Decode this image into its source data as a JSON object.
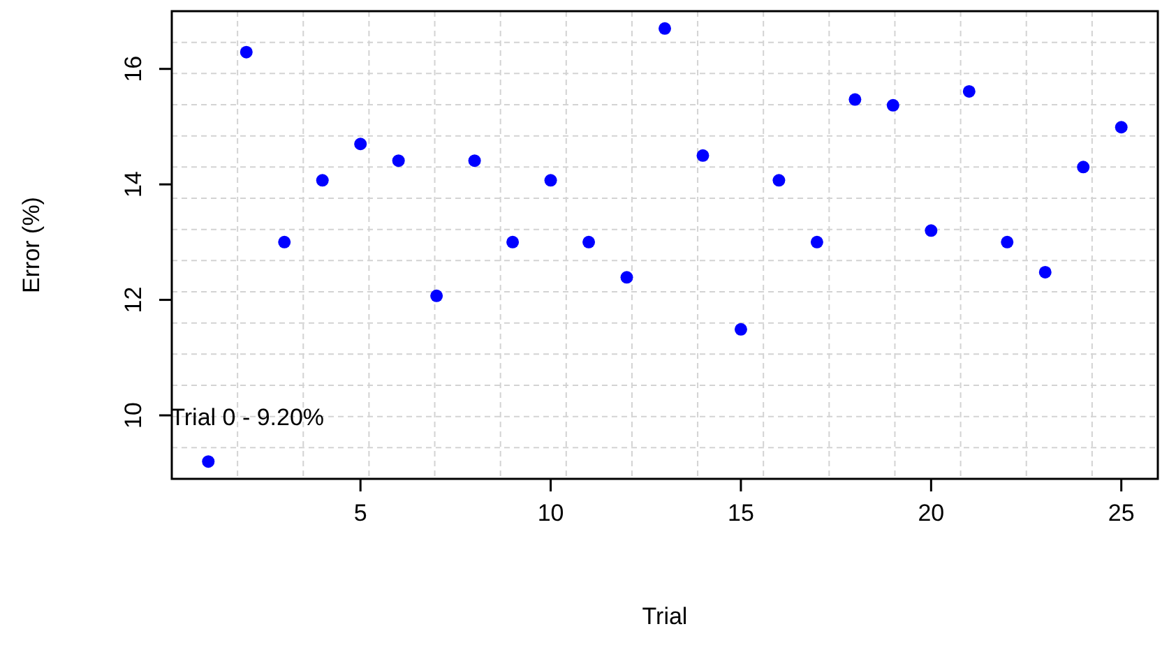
{
  "chart_data": {
    "type": "scatter",
    "xlabel": "Trial",
    "ylabel": "Error (%)",
    "x": [
      1,
      2,
      3,
      4,
      5,
      6,
      7,
      8,
      9,
      10,
      11,
      12,
      13,
      14,
      15,
      16,
      17,
      18,
      19,
      20,
      21,
      22,
      23,
      24,
      25
    ],
    "series": [
      {
        "color": "#0000ff",
        "values": [
          9.2,
          16.29,
          13.0,
          14.07,
          14.7,
          14.41,
          12.07,
          14.41,
          13.0,
          14.07,
          13.0,
          12.39,
          16.7,
          14.5,
          11.49,
          14.07,
          13.0,
          15.47,
          15.37,
          13.2,
          15.61,
          13.0,
          12.48,
          14.3,
          14.99
        ]
      }
    ],
    "xlim": [
      0.04,
      25.96
    ],
    "xticks": [
      5,
      10,
      15,
      20,
      25
    ],
    "ylim": [
      8.9,
      17.0
    ],
    "yticks": [
      10,
      12,
      14,
      16
    ],
    "grid": true,
    "marker": "circle",
    "annotations": [
      {
        "text": "Trial 0 - 9.20%",
        "x": 1,
        "y": 9.2
      }
    ]
  }
}
